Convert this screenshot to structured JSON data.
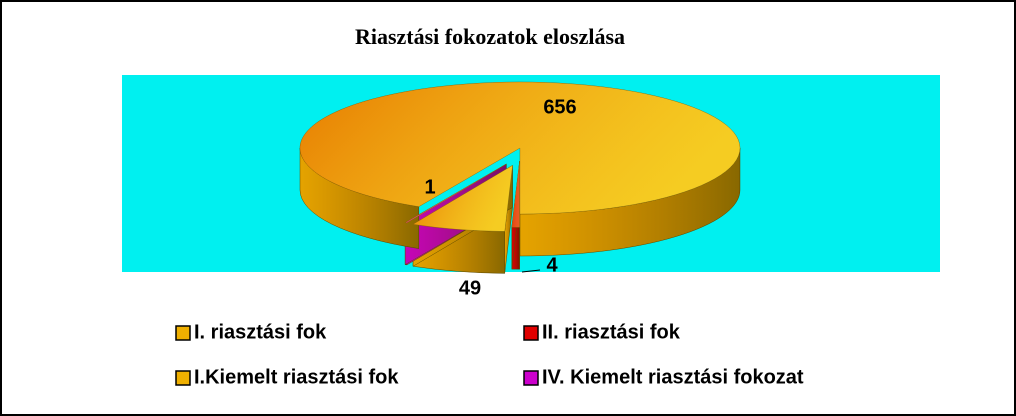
{
  "chart_data": {
    "type": "pie",
    "title": "Riasztási fokozatok eloszlása",
    "categories": [
      "I. riasztási fok",
      "II. riasztási fok",
      "I.Kiemelt riasztási fok",
      "IV. Kiemelt riasztási fokozat"
    ],
    "values": [
      656,
      4,
      49,
      1
    ],
    "colors": [
      "#f0b000",
      "#e00000",
      "#f0b000",
      "#cc00cc"
    ],
    "legend": "bottom"
  }
}
